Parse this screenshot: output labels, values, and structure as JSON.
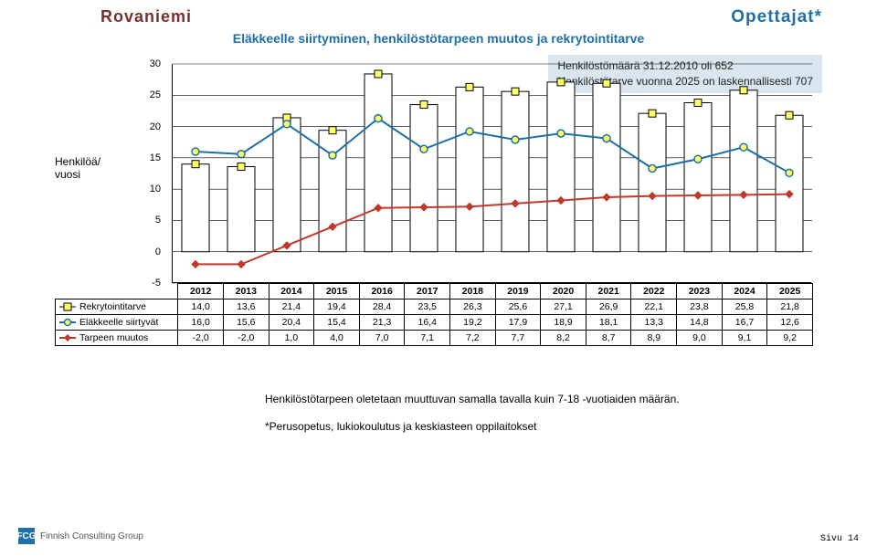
{
  "header": {
    "left": "Rovaniemi",
    "right": "Opettajat*"
  },
  "subtitle": "Eläkkeelle siirtyminen, henkilöstötarpeen muutos ja rekrytointitarve",
  "info_box": {
    "line1": "Henkilöstömäärä 31.12.2010 oli 652",
    "line2": "Henkilöstötarve vuonna 2025 on laskennallisesti 707"
  },
  "ylabel": "Henkilöä/\nvuosi",
  "chart": {
    "type": "bar+line",
    "years": [
      "2012",
      "2013",
      "2014",
      "2015",
      "2016",
      "2017",
      "2018",
      "2019",
      "2020",
      "2021",
      "2022",
      "2023",
      "2024",
      "2025"
    ],
    "series": [
      {
        "name": "Rekrytointitarve",
        "type": "bar",
        "color_fill": "#ffffff",
        "color_stroke": "#000000",
        "marker": "square",
        "marker_fill": "#ffff66",
        "marker_stroke": "#000000",
        "values": [
          14.0,
          13.6,
          21.4,
          19.4,
          28.4,
          23.5,
          26.3,
          25.6,
          27.1,
          26.9,
          22.1,
          23.8,
          25.8,
          21.8
        ]
      },
      {
        "name": "Eläkkeelle siirtyvät",
        "type": "line",
        "color": "#1f6fa8",
        "marker": "circle",
        "marker_fill": "#ffff66",
        "marker_stroke": "#1f6fa8",
        "values": [
          16.0,
          15.6,
          20.4,
          15.4,
          21.3,
          16.4,
          19.2,
          17.9,
          18.9,
          18.1,
          13.3,
          14.8,
          16.7,
          12.6
        ]
      },
      {
        "name": "Tarpeen muutos",
        "type": "line",
        "color": "#c0392b",
        "marker": "diamond",
        "marker_fill": "#c0392b",
        "marker_stroke": "#c0392b",
        "values": [
          -2.0,
          -2.0,
          1.0,
          4.0,
          7.0,
          7.1,
          7.2,
          7.7,
          8.2,
          8.7,
          8.9,
          9.0,
          9.1,
          9.2
        ]
      }
    ],
    "ylim": [
      -5,
      30
    ],
    "yticks": [
      -5,
      0,
      5,
      10,
      15,
      20,
      25,
      30
    ],
    "grid_color": "#000000",
    "background": "#ffffff",
    "label_fontsize": 12,
    "bar_width": 0.6
  },
  "notes": {
    "n1": "Henkilöstötarpeen oletetaan muuttuvan samalla tavalla kuin 7-18 -vuotiaiden määrän.",
    "n2": "*Perusopetus, lukiokoulutus ja keskiasteen oppilaitokset"
  },
  "footer": {
    "logo_text": "Finnish Consulting Group",
    "logo_badge": "FCG",
    "page": "Sivu 14"
  }
}
